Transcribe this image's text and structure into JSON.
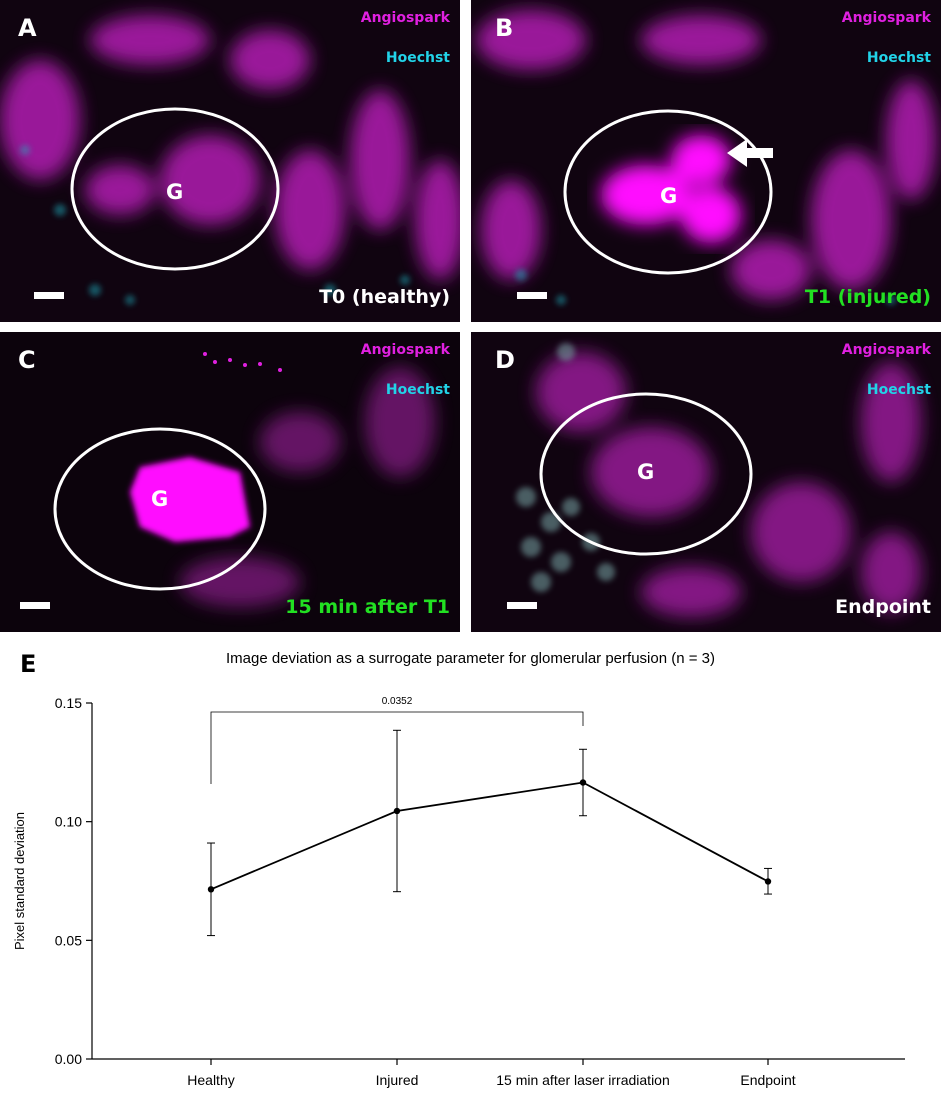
{
  "panels": [
    {
      "label": "A",
      "channel1": "Angiospark",
      "channel2": "Hoechst",
      "glom": "G",
      "condition": "T0 (healthy)",
      "condition_color": "#ffffff"
    },
    {
      "label": "B",
      "channel1": "Angiospark",
      "channel2": "Hoechst",
      "glom": "G",
      "condition": "T1 (injured)",
      "condition_color": "#22e022"
    },
    {
      "label": "C",
      "channel1": "Angiospark",
      "channel2": "Hoechst",
      "glom": "G",
      "condition": "15 min after T1",
      "condition_color": "#22e022"
    },
    {
      "label": "D",
      "channel1": "Angiospark",
      "channel2": "Hoechst",
      "glom": "G",
      "condition": "Endpoint",
      "condition_color": "#ffffff"
    }
  ],
  "colors": {
    "angiospark": "#e020e0",
    "hoechst": "#22d3e8",
    "injured_text": "#22e022"
  },
  "chart_panel_label": "E",
  "chart_data": {
    "type": "line",
    "title": "Image deviation as a surrogate parameter for glomerular perfusion (n = 3)",
    "xlabel": "",
    "ylabel": "Pixel standard deviation",
    "categories": [
      "Healthy",
      "Injured",
      "15 min after laser irradiation",
      "Endpoint"
    ],
    "values": [
      0.0715,
      0.1045,
      0.1165,
      0.0748
    ],
    "error_low": [
      0.052,
      0.0705,
      0.1025,
      0.0695
    ],
    "error_high": [
      0.091,
      0.1385,
      0.1305,
      0.0803
    ],
    "ylim": [
      0,
      0.15
    ],
    "yticks": [
      "0.00",
      "0.05",
      "0.10",
      "0.15"
    ],
    "ytick_values": [
      0,
      0.05,
      0.1,
      0.15
    ],
    "significance": {
      "from": 0,
      "to": 2,
      "label": "0.0352"
    }
  }
}
